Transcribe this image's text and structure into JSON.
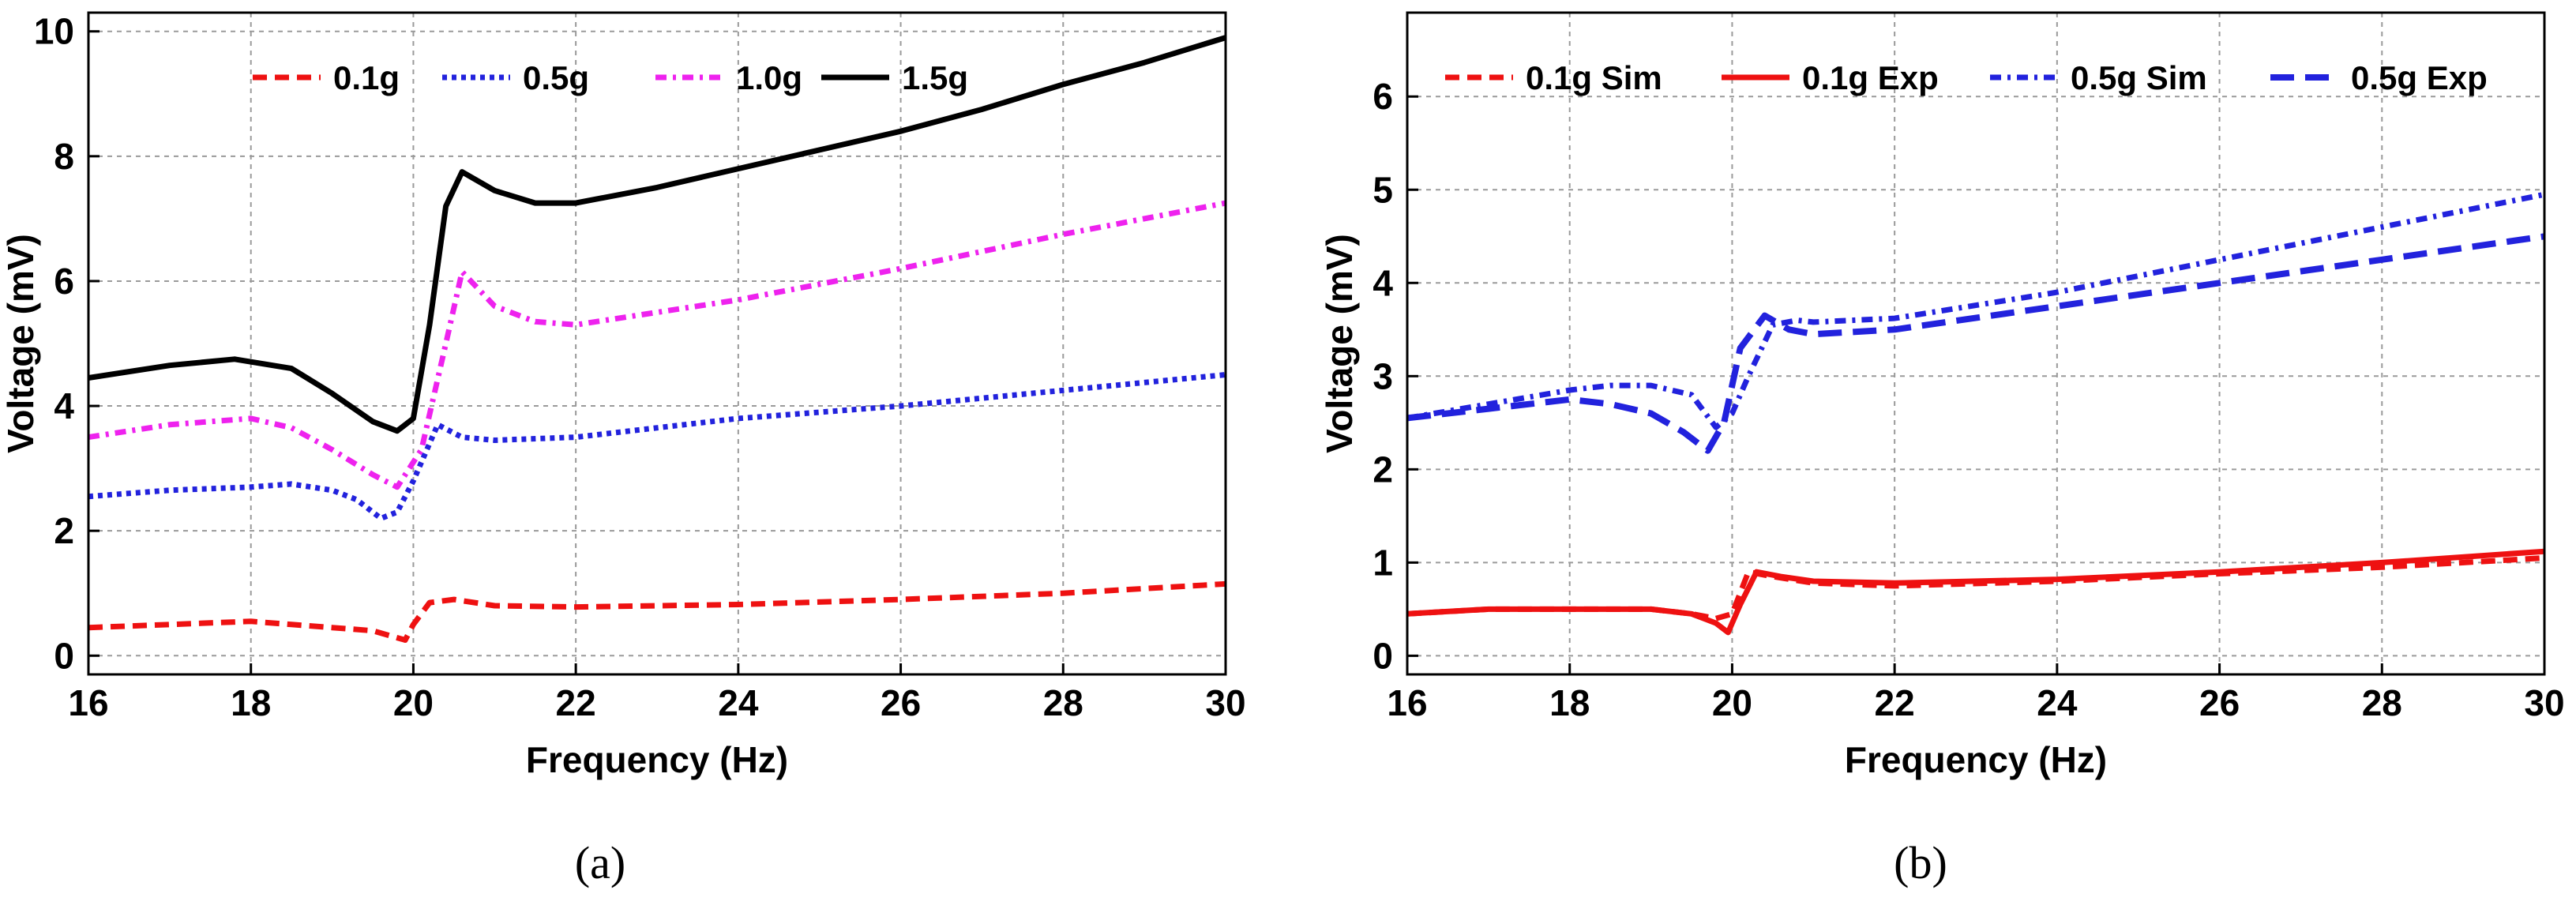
{
  "chart_data": [
    {
      "type": "line",
      "panel_label": "(a)",
      "xlabel": "Frequency (Hz)",
      "ylabel": "Voltage (mV)",
      "xlim": [
        16,
        30
      ],
      "ylim": [
        -0.3,
        10.3
      ],
      "xticks": [
        16,
        18,
        20,
        22,
        24,
        26,
        28,
        30
      ],
      "yticks": [
        0,
        2,
        4,
        6,
        8,
        10
      ],
      "grid": true,
      "legend_placement": "top-center",
      "series": [
        {
          "name": "0.1g",
          "color": "#ee1111",
          "dash": "short-dash",
          "x": [
            16,
            17,
            18,
            18.5,
            19,
            19.5,
            19.9,
            20.0,
            20.2,
            20.5,
            21,
            22,
            24,
            26,
            28,
            30
          ],
          "y": [
            0.45,
            0.5,
            0.55,
            0.5,
            0.45,
            0.4,
            0.25,
            0.5,
            0.85,
            0.9,
            0.8,
            0.78,
            0.82,
            0.9,
            1.0,
            1.15
          ]
        },
        {
          "name": "0.5g",
          "color": "#2222dd",
          "dash": "dotted",
          "x": [
            16,
            17,
            18,
            18.5,
            19,
            19.3,
            19.6,
            19.8,
            20.0,
            20.3,
            20.6,
            21,
            22,
            24,
            26,
            28,
            30
          ],
          "y": [
            2.55,
            2.65,
            2.7,
            2.75,
            2.65,
            2.5,
            2.2,
            2.3,
            2.8,
            3.7,
            3.5,
            3.45,
            3.5,
            3.8,
            4.0,
            4.25,
            4.5
          ]
        },
        {
          "name": "1.0g",
          "color": "#ee22ee",
          "dash": "dash-dot",
          "x": [
            16,
            17,
            18,
            18.5,
            19,
            19.5,
            19.8,
            20.1,
            20.4,
            20.6,
            21,
            21.5,
            22,
            24,
            26,
            28,
            30
          ],
          "y": [
            3.5,
            3.7,
            3.8,
            3.65,
            3.3,
            2.9,
            2.7,
            3.3,
            5.0,
            6.15,
            5.6,
            5.35,
            5.3,
            5.7,
            6.2,
            6.75,
            7.25
          ]
        },
        {
          "name": "1.5g",
          "color": "#000000",
          "dash": "solid",
          "x": [
            16,
            17,
            17.8,
            18.5,
            19,
            19.5,
            19.8,
            20.0,
            20.2,
            20.4,
            20.6,
            21,
            21.5,
            22,
            23,
            24,
            25,
            26,
            27,
            28,
            29,
            30
          ],
          "y": [
            4.45,
            4.65,
            4.75,
            4.6,
            4.2,
            3.75,
            3.6,
            3.8,
            5.3,
            7.2,
            7.75,
            7.45,
            7.25,
            7.25,
            7.5,
            7.8,
            8.1,
            8.4,
            8.75,
            9.15,
            9.5,
            9.9
          ]
        }
      ]
    },
    {
      "type": "line",
      "panel_label": "(b)",
      "xlabel": "Frequency (Hz)",
      "ylabel": "Voltage (mV)",
      "xlim": [
        16,
        30
      ],
      "ylim": [
        -0.2,
        6.9
      ],
      "xticks": [
        16,
        18,
        20,
        22,
        24,
        26,
        28,
        30
      ],
      "yticks": [
        0,
        1,
        2,
        3,
        4,
        5,
        6
      ],
      "grid": true,
      "legend_placement": "top",
      "series": [
        {
          "name": "0.1g Sim",
          "color": "#ee1111",
          "dash": "short-dash",
          "x": [
            16,
            17,
            18,
            19,
            19.5,
            19.8,
            20.0,
            20.2,
            20.5,
            21,
            22,
            24,
            26,
            28,
            30
          ],
          "y": [
            0.45,
            0.5,
            0.5,
            0.5,
            0.45,
            0.4,
            0.45,
            0.9,
            0.85,
            0.78,
            0.75,
            0.8,
            0.88,
            0.95,
            1.05
          ]
        },
        {
          "name": "0.1g Exp",
          "color": "#ee1111",
          "dash": "solid",
          "x": [
            16,
            17,
            18,
            19,
            19.5,
            19.8,
            19.95,
            20.1,
            20.3,
            20.6,
            21,
            22,
            24,
            26,
            28,
            30
          ],
          "y": [
            0.45,
            0.5,
            0.5,
            0.5,
            0.45,
            0.35,
            0.25,
            0.55,
            0.9,
            0.85,
            0.8,
            0.78,
            0.82,
            0.9,
            1.0,
            1.12
          ]
        },
        {
          "name": "0.5g Sim",
          "color": "#2222dd",
          "dash": "dash-dot",
          "x": [
            16,
            17,
            18,
            18.5,
            19,
            19.5,
            19.8,
            20.0,
            20.2,
            20.5,
            20.8,
            21,
            22,
            24,
            26,
            28,
            30
          ],
          "y": [
            2.55,
            2.7,
            2.85,
            2.9,
            2.9,
            2.8,
            2.45,
            2.6,
            3.0,
            3.55,
            3.6,
            3.58,
            3.62,
            3.9,
            4.25,
            4.6,
            4.95
          ]
        },
        {
          "name": "0.5g Exp",
          "color": "#2222dd",
          "dash": "long-dash",
          "x": [
            16,
            17,
            18,
            18.5,
            19,
            19.4,
            19.7,
            19.9,
            20.1,
            20.4,
            20.7,
            21,
            22,
            24,
            26,
            28,
            30
          ],
          "y": [
            2.55,
            2.65,
            2.75,
            2.7,
            2.6,
            2.4,
            2.2,
            2.5,
            3.3,
            3.65,
            3.5,
            3.45,
            3.5,
            3.75,
            4.0,
            4.25,
            4.5
          ]
        }
      ]
    }
  ]
}
